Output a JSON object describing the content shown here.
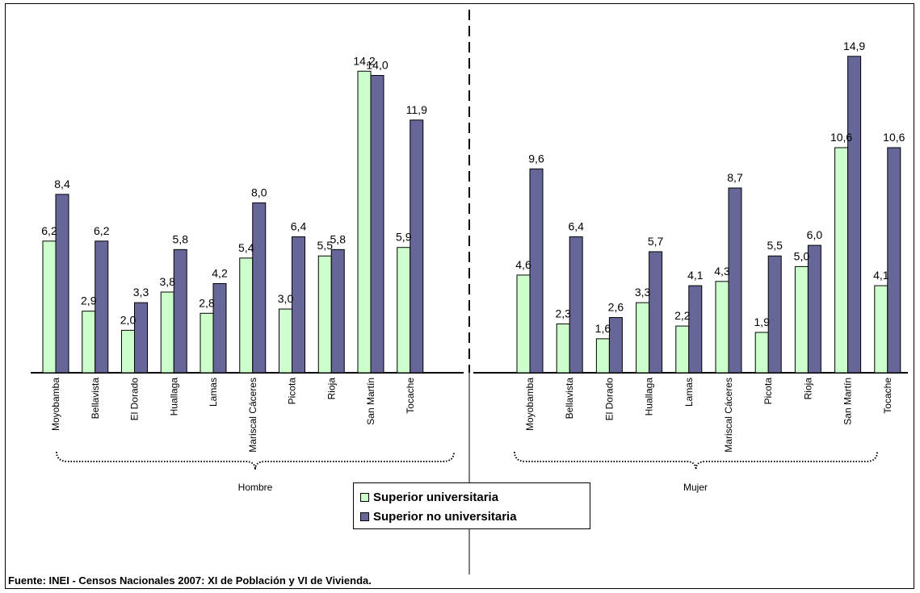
{
  "chart_data": [
    {
      "type": "bar",
      "group": "Hombre",
      "categories": [
        "Moyobamba",
        "Bellavista",
        "El Dorado",
        "Huallaga",
        "Lamas",
        "Mariscal Cáceres",
        "Picota",
        "Rioja",
        "San Martín",
        "Tocache"
      ],
      "series": [
        {
          "name": "Superior universitaria",
          "color": "#ccffcc",
          "values": [
            6.2,
            2.9,
            2.0,
            3.8,
            2.8,
            5.4,
            3.0,
            5.5,
            14.2,
            5.9
          ],
          "labels": [
            "6,2",
            "2,9",
            "2,0",
            "3,8",
            "2,8",
            "5,4",
            "3,0",
            "5,5",
            "14,2",
            "5,9"
          ]
        },
        {
          "name": "Superior no universitaria",
          "color": "#666699",
          "values": [
            8.4,
            6.2,
            3.3,
            5.8,
            4.2,
            8.0,
            6.4,
            5.8,
            14.0,
            11.9
          ],
          "labels": [
            "8,4",
            "6,2",
            "3,3",
            "5,8",
            "4,2",
            "8,0",
            "6,4",
            "5,8",
            "14,0",
            "11,9"
          ]
        }
      ]
    },
    {
      "type": "bar",
      "group": "Mujer",
      "categories": [
        "Moyobamba",
        "Bellavista",
        "El Dorado",
        "Huallaga",
        "Lamas",
        "Mariscal Cáceres",
        "Picota",
        "Rioja",
        "San Martín",
        "Tocache"
      ],
      "series": [
        {
          "name": "Superior universitaria",
          "color": "#ccffcc",
          "values": [
            4.6,
            2.3,
            1.6,
            3.3,
            2.2,
            4.3,
            1.9,
            5.0,
            10.6,
            4.1
          ],
          "labels": [
            "4,6",
            "2,3",
            "1,6",
            "3,3",
            "2,2",
            "4,3",
            "1,9",
            "5,0",
            "10,6",
            "4,1"
          ]
        },
        {
          "name": "Superior no universitaria",
          "color": "#666699",
          "values": [
            9.6,
            6.4,
            2.6,
            5.7,
            4.1,
            8.7,
            5.5,
            6.0,
            14.9,
            10.6
          ],
          "labels": [
            "9,6",
            "6,4",
            "2,6",
            "5,7",
            "4,1",
            "8,7",
            "5,5",
            "6,0",
            "14,9",
            "10,6"
          ]
        }
      ]
    }
  ],
  "legend": {
    "items": [
      {
        "label": "Superior universitaria",
        "color": "#ccffcc"
      },
      {
        "label": "Superior no universitaria",
        "color": "#666699"
      }
    ]
  },
  "source": "Fuente: INEI - Censos Nacionales 2007: XI de Población y VI de Vivienda."
}
